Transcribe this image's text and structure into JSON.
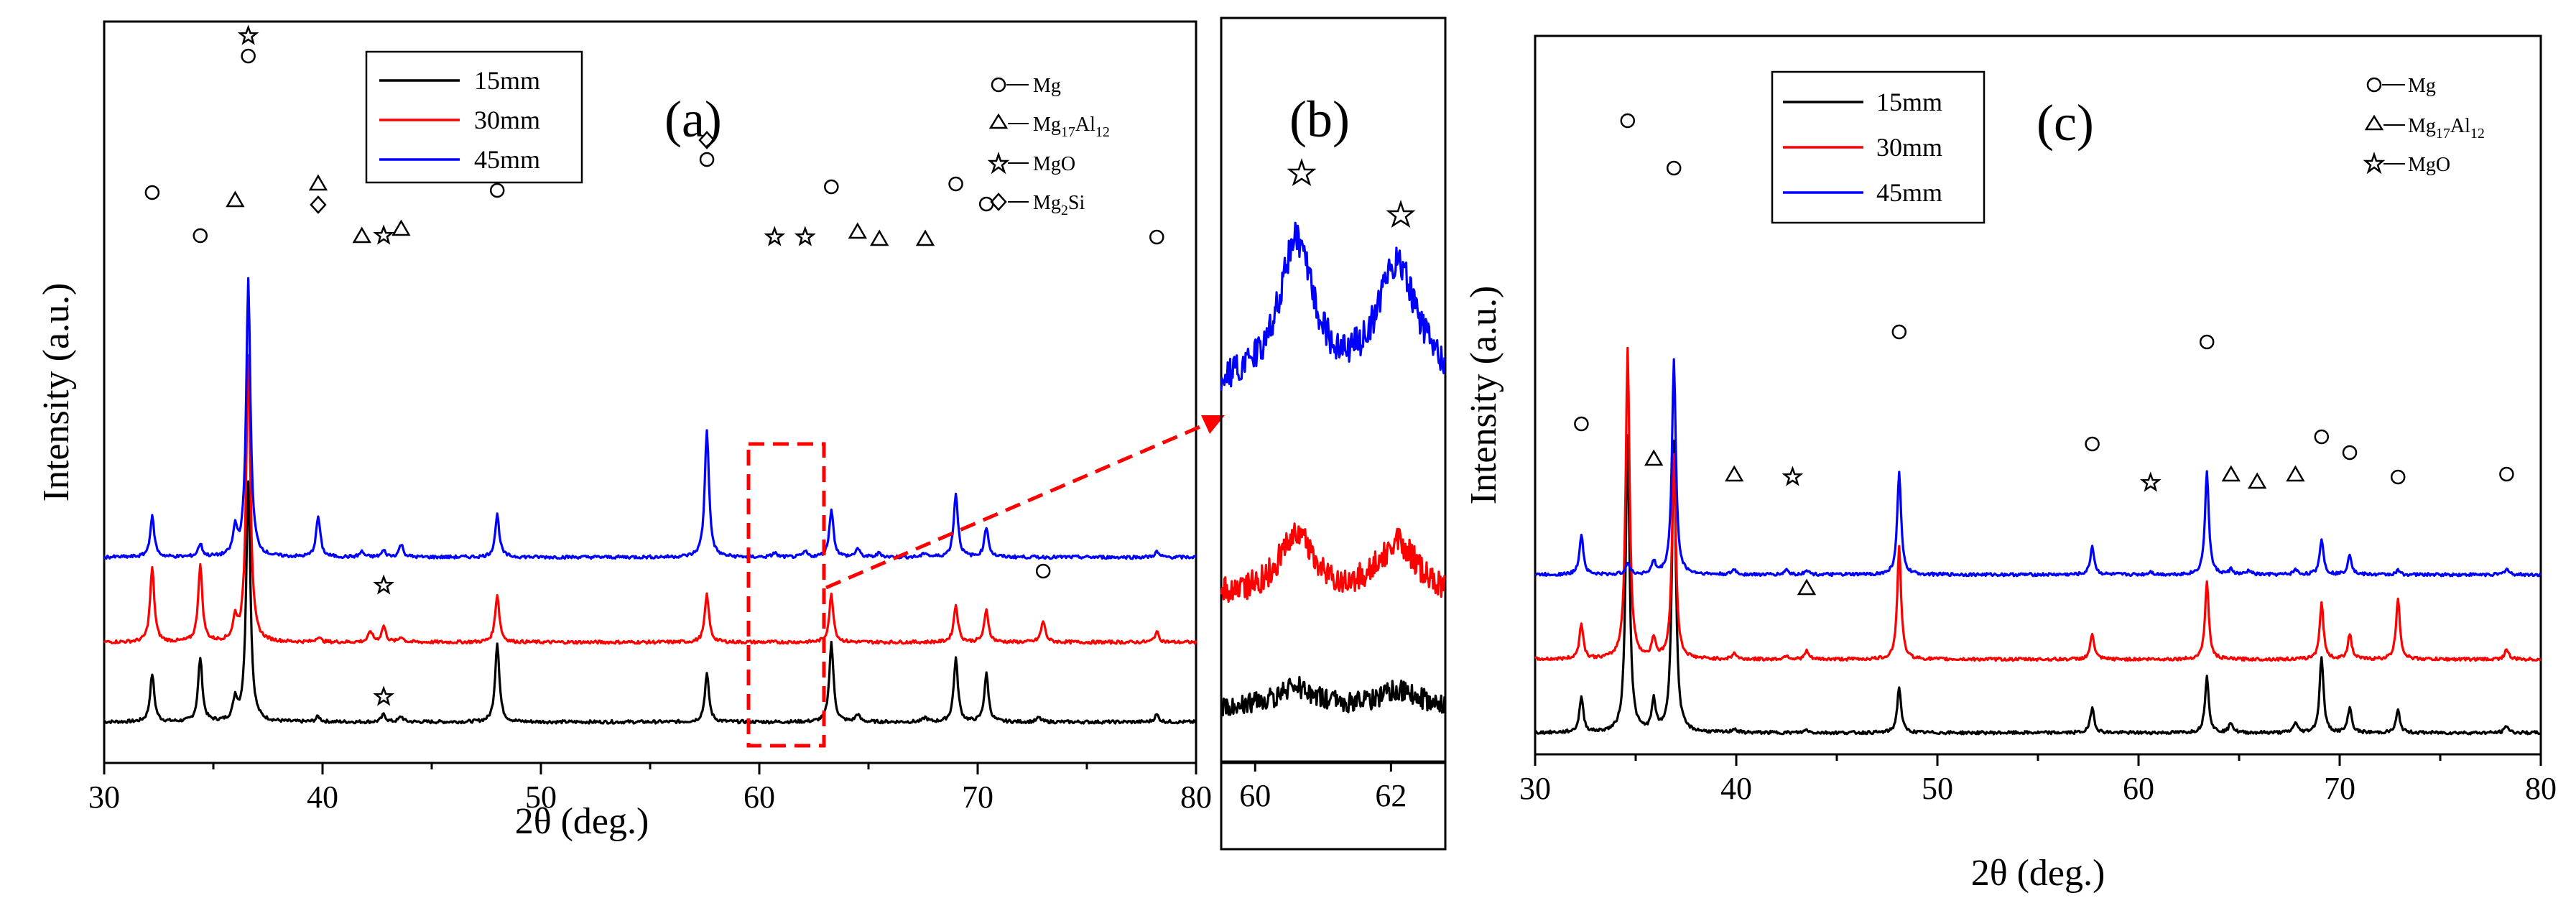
{
  "chart_data": [
    {
      "panel": "a",
      "type": "line",
      "panel_label": "(a)",
      "xlabel": "2θ (deg.)",
      "ylabel": "Intensity (a.u.)",
      "xlim": [
        30,
        80
      ],
      "xticks": [
        "30",
        "40",
        "50",
        "60",
        "70",
        "80"
      ],
      "legend": [
        "15mm",
        "30mm",
        "45mm"
      ],
      "series": [
        {
          "name": "15mm",
          "color": "#000000",
          "offset": 0,
          "peaks": [
            [
              32.2,
              0.45
            ],
            [
              34.4,
              0.6
            ],
            [
              36.0,
              0.2
            ],
            [
              36.6,
              2.25
            ],
            [
              39.8,
              0.05
            ],
            [
              42.8,
              0.07
            ],
            [
              43.6,
              0.05
            ],
            [
              48.0,
              0.75
            ],
            [
              57.6,
              0.45
            ],
            [
              63.3,
              0.75
            ],
            [
              64.5,
              0.07
            ],
            [
              67.6,
              0.04
            ],
            [
              69.0,
              0.6
            ],
            [
              70.4,
              0.45
            ],
            [
              72.8,
              0.04
            ],
            [
              78.2,
              0.07
            ]
          ]
        },
        {
          "name": "30mm",
          "color": "#ff0000",
          "offset": 0.75,
          "peaks": [
            [
              32.2,
              0.7
            ],
            [
              34.4,
              0.72
            ],
            [
              36.0,
              0.2
            ],
            [
              36.6,
              2.7
            ],
            [
              39.8,
              0.05
            ],
            [
              42.2,
              0.1
            ],
            [
              42.8,
              0.15
            ],
            [
              43.6,
              0.05
            ],
            [
              48.0,
              0.45
            ],
            [
              57.6,
              0.45
            ],
            [
              63.3,
              0.45
            ],
            [
              69.0,
              0.35
            ],
            [
              70.4,
              0.3
            ],
            [
              73.0,
              0.2
            ],
            [
              78.2,
              0.1
            ]
          ]
        },
        {
          "name": "45mm",
          "color": "#0000ff",
          "offset": 1.55,
          "peaks": [
            [
              32.2,
              0.38
            ],
            [
              34.4,
              0.12
            ],
            [
              36.0,
              0.25
            ],
            [
              36.6,
              2.6
            ],
            [
              39.8,
              0.38
            ],
            [
              41.8,
              0.05
            ],
            [
              42.8,
              0.06
            ],
            [
              43.6,
              0.12
            ],
            [
              48.0,
              0.4
            ],
            [
              57.6,
              1.2
            ],
            [
              60.7,
              0.04
            ],
            [
              62.1,
              0.05
            ],
            [
              63.3,
              0.45
            ],
            [
              64.5,
              0.08
            ],
            [
              65.5,
              0.04
            ],
            [
              67.6,
              0.04
            ],
            [
              69.0,
              0.6
            ],
            [
              70.4,
              0.28
            ],
            [
              78.2,
              0.05
            ]
          ]
        }
      ],
      "marker_legend": [
        {
          "symbol": "circle",
          "text": "Mg"
        },
        {
          "symbol": "triangle",
          "text": "Mg",
          "sub1": "17",
          "mid": "Al",
          "sub2": "12"
        },
        {
          "symbol": "star",
          "text": "MgO"
        },
        {
          "symbol": "diamond",
          "text": "Mg",
          "sub1": "2",
          "mid": "Si",
          "sub2": ""
        }
      ]
    },
    {
      "panel": "b",
      "type": "line",
      "panel_label": "(b)",
      "xlim": [
        59.5,
        62.8
      ],
      "xticks": [
        "60",
        "62"
      ],
      "series": [
        {
          "name": "45mm",
          "color": "#0000ff"
        },
        {
          "name": "30mm",
          "color": "#ff0000"
        },
        {
          "name": "15mm",
          "color": "#000000"
        }
      ]
    },
    {
      "panel": "c",
      "type": "line",
      "panel_label": "(c)",
      "xlabel": "2θ (deg.)",
      "ylabel": "Intensity (a.u.)",
      "xlim": [
        30,
        80
      ],
      "xticks": [
        "30",
        "40",
        "50",
        "60",
        "70",
        "80"
      ],
      "legend": [
        "15mm",
        "30mm",
        "45mm"
      ],
      "series": [
        {
          "name": "15mm",
          "color": "#000000",
          "offset": 0,
          "peaks": [
            [
              32.3,
              0.35
            ],
            [
              34.6,
              2.9
            ],
            [
              35.9,
              0.3
            ],
            [
              36.9,
              2.85
            ],
            [
              39.9,
              0.04
            ],
            [
              43.5,
              0.03
            ],
            [
              48.1,
              0.45
            ],
            [
              57.7,
              0.25
            ],
            [
              63.4,
              0.55
            ],
            [
              64.6,
              0.1
            ],
            [
              67.8,
              0.1
            ],
            [
              69.1,
              0.75
            ],
            [
              70.5,
              0.25
            ],
            [
              72.9,
              0.22
            ],
            [
              78.3,
              0.07
            ]
          ]
        },
        {
          "name": "30mm",
          "color": "#ff0000",
          "offset": 0.72,
          "peaks": [
            [
              32.3,
              0.35
            ],
            [
              34.6,
              3.05
            ],
            [
              35.9,
              0.2
            ],
            [
              36.9,
              2.0
            ],
            [
              39.9,
              0.06
            ],
            [
              42.5,
              0.04
            ],
            [
              43.5,
              0.08
            ],
            [
              48.1,
              1.1
            ],
            [
              57.7,
              0.25
            ],
            [
              63.4,
              0.75
            ],
            [
              69.1,
              0.55
            ],
            [
              70.5,
              0.25
            ],
            [
              72.9,
              0.6
            ],
            [
              78.3,
              0.1
            ]
          ]
        },
        {
          "name": "45mm",
          "color": "#0000ff",
          "offset": 1.55,
          "peaks": [
            [
              32.3,
              0.4
            ],
            [
              34.6,
              0.12
            ],
            [
              35.9,
              0.12
            ],
            [
              36.9,
              2.1
            ],
            [
              39.9,
              0.05
            ],
            [
              42.5,
              0.05
            ],
            [
              43.5,
              0.05
            ],
            [
              48.1,
              1.0
            ],
            [
              57.7,
              0.28
            ],
            [
              60.6,
              0.03
            ],
            [
              63.4,
              1.0
            ],
            [
              64.6,
              0.05
            ],
            [
              65.5,
              0.04
            ],
            [
              67.8,
              0.05
            ],
            [
              69.1,
              0.35
            ],
            [
              70.5,
              0.2
            ],
            [
              72.9,
              0.04
            ],
            [
              78.3,
              0.06
            ]
          ]
        }
      ],
      "marker_legend": [
        {
          "symbol": "circle",
          "text": "Mg"
        },
        {
          "symbol": "triangle",
          "text": "Mg",
          "sub1": "17",
          "mid": "Al",
          "sub2": "12"
        },
        {
          "symbol": "star",
          "text": "MgO"
        }
      ]
    }
  ]
}
